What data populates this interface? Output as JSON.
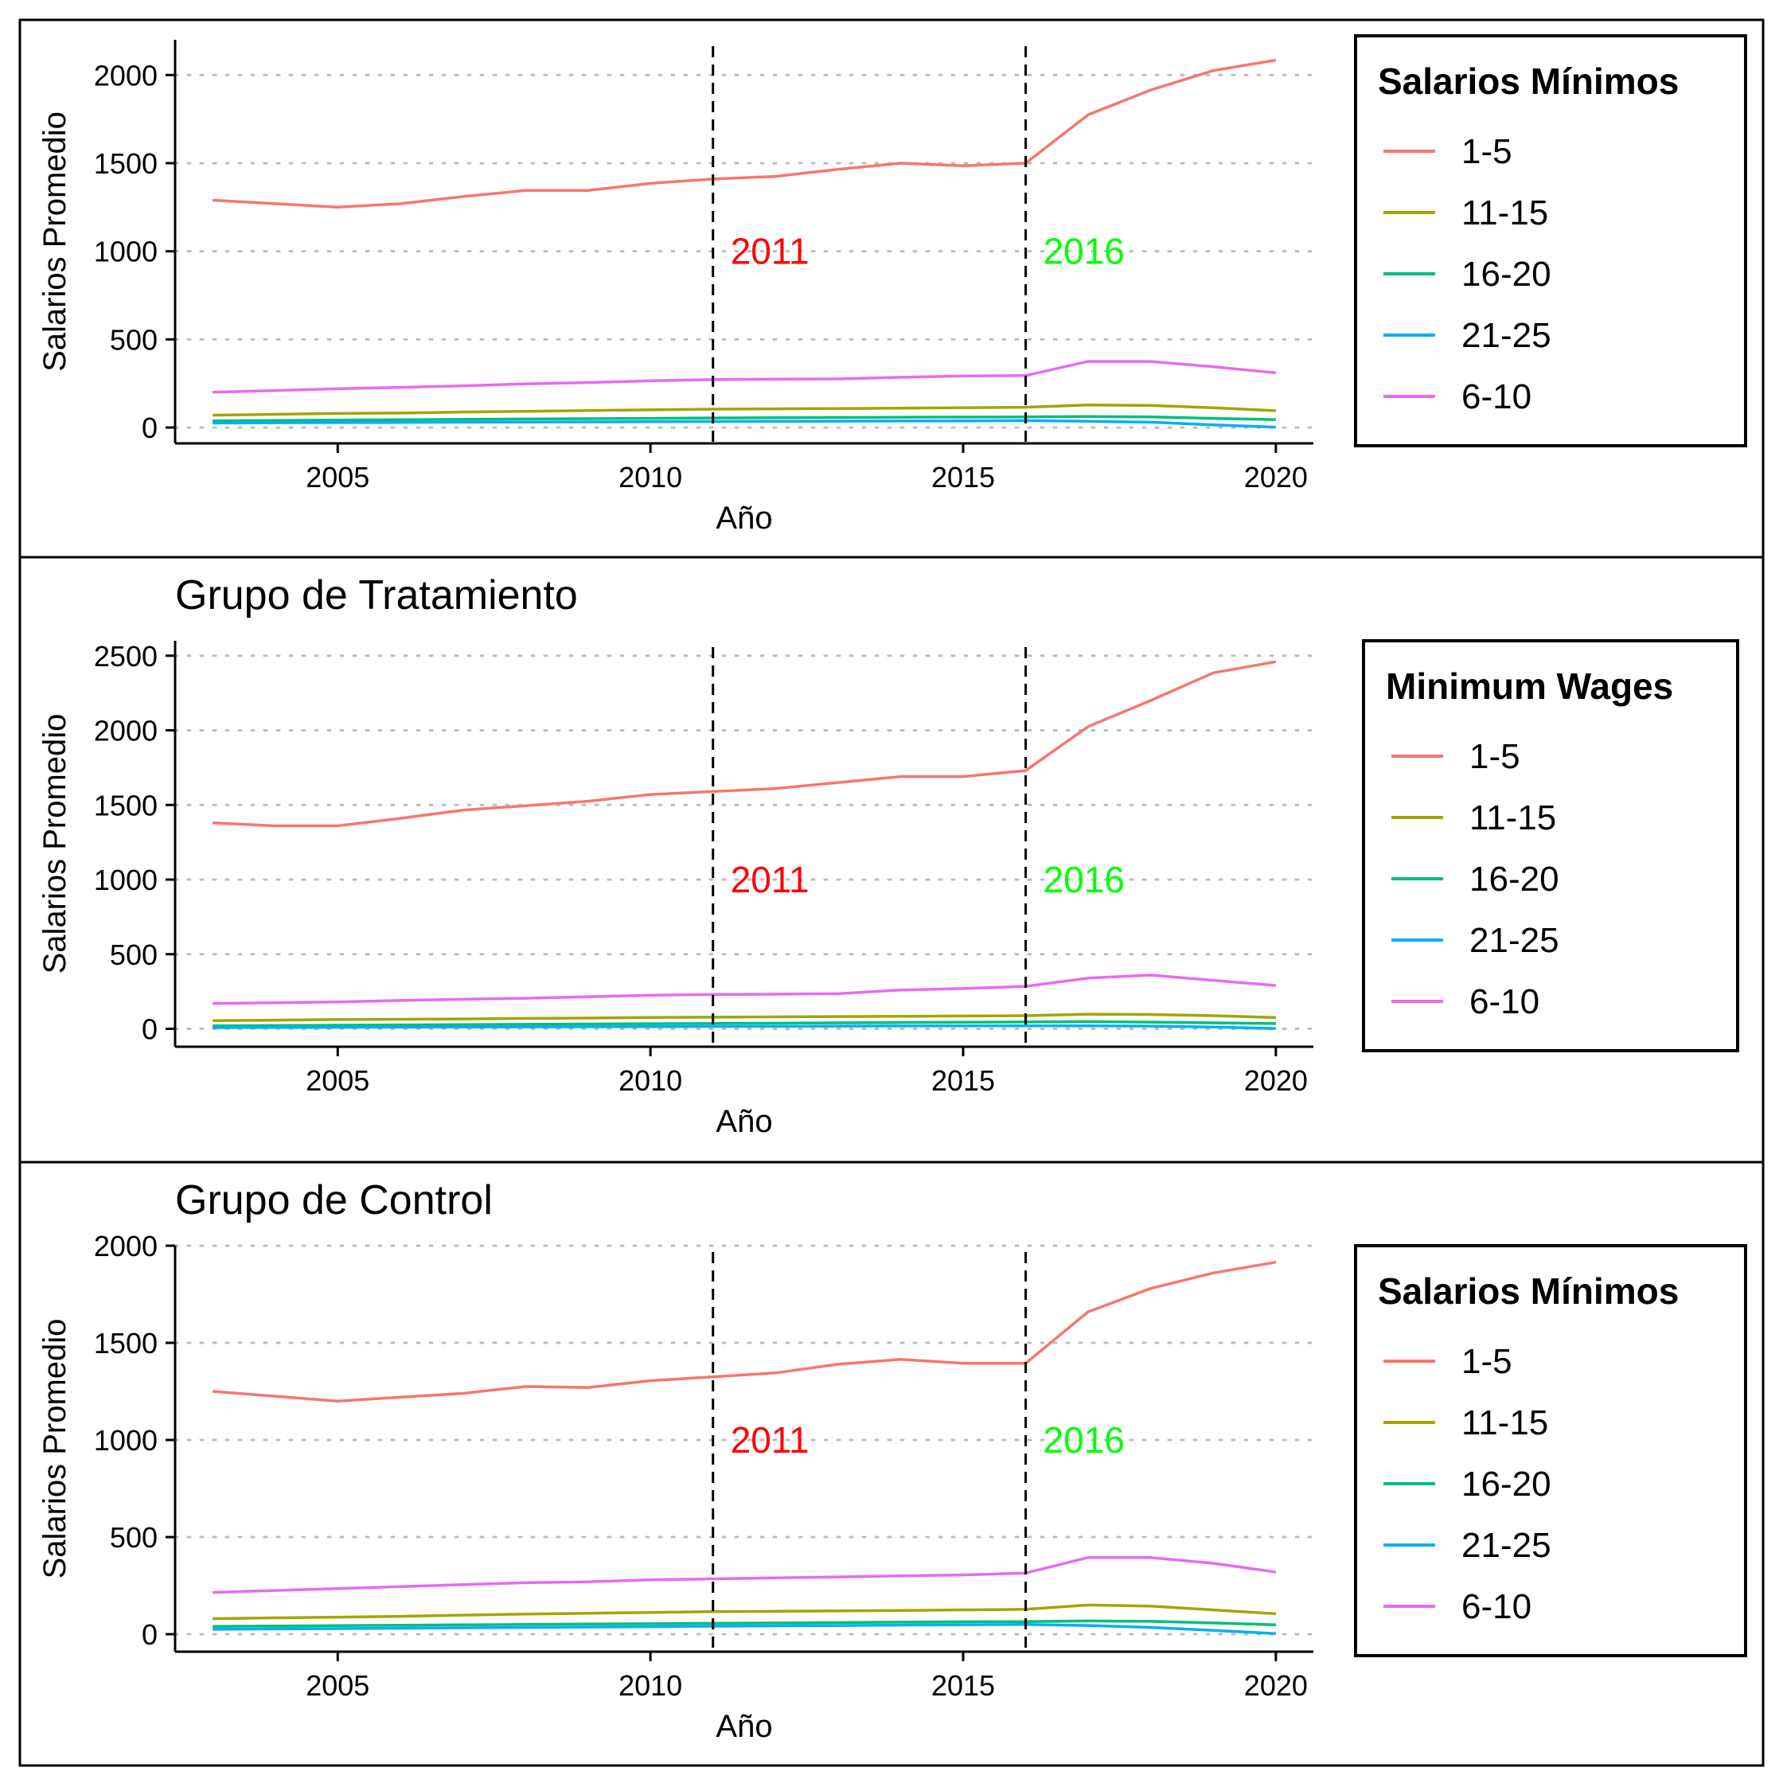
{
  "chart_data": [
    {
      "type": "line",
      "title": "",
      "xlabel": "Año",
      "ylabel": "Salarios Promedio",
      "xlim": [
        2002.4,
        2020.6
      ],
      "ylim": [
        -90,
        2200
      ],
      "x_ticks": [
        2005,
        2010,
        2015,
        2020
      ],
      "y_ticks": [
        0,
        500,
        1000,
        1500,
        2000
      ],
      "grid": "horizontal dotted",
      "legend_title": "Salarios Mínimos",
      "legend_position": "right",
      "vlines": [
        {
          "x": 2011,
          "label": "2011",
          "color": "#ff0000"
        },
        {
          "x": 2016,
          "label": "2016",
          "color": "#00ff00"
        }
      ],
      "x": [
        2003,
        2004,
        2005,
        2006,
        2007,
        2008,
        2009,
        2010,
        2011,
        2012,
        2013,
        2014,
        2015,
        2016,
        2017,
        2018,
        2019,
        2020
      ],
      "series": [
        {
          "name": "1-5",
          "color": "#F8766D",
          "values": [
            1290,
            1270,
            1250,
            1270,
            1310,
            1345,
            1345,
            1385,
            1410,
            1425,
            1465,
            1500,
            1485,
            1500,
            1775,
            1915,
            2025,
            2085
          ]
        },
        {
          "name": "11-15",
          "color": "#A3A500",
          "values": [
            70,
            75,
            80,
            82,
            88,
            92,
            96,
            100,
            104,
            106,
            108,
            110,
            112,
            115,
            128,
            125,
            112,
            95
          ]
        },
        {
          "name": "16-20",
          "color": "#00BF7D",
          "values": [
            38,
            40,
            42,
            44,
            46,
            48,
            50,
            52,
            54,
            56,
            57,
            58,
            59,
            60,
            62,
            60,
            52,
            45
          ]
        },
        {
          "name": "21-25",
          "color": "#00B0F6",
          "values": [
            25,
            27,
            28,
            29,
            30,
            31,
            32,
            33,
            34,
            35,
            36,
            37,
            38,
            39,
            35,
            30,
            15,
            2
          ]
        },
        {
          "name": "6-10",
          "color": "#E76BF3",
          "values": [
            200,
            210,
            220,
            228,
            236,
            248,
            255,
            265,
            272,
            275,
            276,
            285,
            292,
            295,
            375,
            375,
            345,
            310
          ]
        }
      ]
    },
    {
      "type": "line",
      "title": "Grupo de Tratamiento",
      "xlabel": "Año",
      "ylabel": "Salarios Promedio",
      "xlim": [
        2002.4,
        2020.6
      ],
      "ylim": [
        -120,
        2600
      ],
      "x_ticks": [
        2005,
        2010,
        2015,
        2020
      ],
      "y_ticks": [
        0,
        500,
        1000,
        1500,
        2000,
        2500
      ],
      "grid": "horizontal dotted",
      "legend_title": "Minimum Wages",
      "legend_position": "right",
      "vlines": [
        {
          "x": 2011,
          "label": "2011",
          "color": "#ff0000"
        },
        {
          "x": 2016,
          "label": "2016",
          "color": "#00ff00"
        }
      ],
      "x": [
        2003,
        2004,
        2005,
        2006,
        2007,
        2008,
        2009,
        2010,
        2011,
        2012,
        2013,
        2014,
        2015,
        2016,
        2017,
        2018,
        2019,
        2020
      ],
      "series": [
        {
          "name": "1-5",
          "color": "#F8766D",
          "values": [
            1380,
            1360,
            1360,
            1410,
            1465,
            1495,
            1525,
            1570,
            1590,
            1610,
            1650,
            1690,
            1690,
            1730,
            2025,
            2200,
            2385,
            2460
          ]
        },
        {
          "name": "11-15",
          "color": "#A3A500",
          "values": [
            55,
            58,
            62,
            64,
            66,
            70,
            72,
            76,
            78,
            80,
            82,
            84,
            86,
            88,
            98,
            96,
            88,
            75
          ]
        },
        {
          "name": "16-20",
          "color": "#00BF7D",
          "values": [
            20,
            22,
            24,
            26,
            28,
            30,
            32,
            34,
            36,
            38,
            40,
            42,
            44,
            46,
            48,
            45,
            40,
            35
          ]
        },
        {
          "name": "21-25",
          "color": "#00B0F6",
          "values": [
            8,
            9,
            10,
            11,
            12,
            13,
            14,
            15,
            16,
            17,
            18,
            19,
            20,
            20,
            20,
            18,
            12,
            2
          ]
        },
        {
          "name": "6-10",
          "color": "#E76BF3",
          "values": [
            170,
            175,
            180,
            190,
            198,
            205,
            215,
            225,
            230,
            232,
            235,
            260,
            270,
            285,
            340,
            360,
            325,
            290
          ]
        }
      ]
    },
    {
      "type": "line",
      "title": "Grupo de Control",
      "xlabel": "Año",
      "ylabel": "Salarios Promedio",
      "xlim": [
        2002.4,
        2020.6
      ],
      "ylim": [
        -90,
        2000
      ],
      "x_ticks": [
        2005,
        2010,
        2015,
        2020
      ],
      "y_ticks": [
        0,
        500,
        1000,
        1500,
        2000
      ],
      "grid": "horizontal dotted",
      "legend_title": "Salarios Mínimos",
      "legend_position": "right",
      "vlines": [
        {
          "x": 2011,
          "label": "2011",
          "color": "#ff0000"
        },
        {
          "x": 2016,
          "label": "2016",
          "color": "#00ff00"
        }
      ],
      "x": [
        2003,
        2004,
        2005,
        2006,
        2007,
        2008,
        2009,
        2010,
        2011,
        2012,
        2013,
        2014,
        2015,
        2016,
        2017,
        2018,
        2019,
        2020
      ],
      "series": [
        {
          "name": "1-5",
          "color": "#F8766D",
          "values": [
            1250,
            1225,
            1200,
            1220,
            1240,
            1275,
            1270,
            1305,
            1325,
            1345,
            1390,
            1415,
            1395,
            1395,
            1660,
            1780,
            1860,
            1915
          ]
        },
        {
          "name": "11-15",
          "color": "#A3A500",
          "values": [
            80,
            84,
            88,
            92,
            98,
            104,
            108,
            112,
            116,
            118,
            120,
            122,
            125,
            128,
            150,
            145,
            125,
            105
          ]
        },
        {
          "name": "16-20",
          "color": "#00BF7D",
          "values": [
            40,
            42,
            44,
            46,
            48,
            50,
            52,
            54,
            56,
            58,
            60,
            62,
            64,
            65,
            68,
            66,
            58,
            48
          ]
        },
        {
          "name": "21-25",
          "color": "#00B0F6",
          "values": [
            25,
            27,
            29,
            31,
            33,
            35,
            37,
            39,
            41,
            43,
            45,
            47,
            49,
            50,
            45,
            35,
            20,
            3
          ]
        },
        {
          "name": "6-10",
          "color": "#E76BF3",
          "values": [
            215,
            225,
            235,
            245,
            255,
            265,
            270,
            280,
            285,
            290,
            295,
            300,
            305,
            315,
            395,
            395,
            365,
            320
          ]
        }
      ]
    }
  ]
}
